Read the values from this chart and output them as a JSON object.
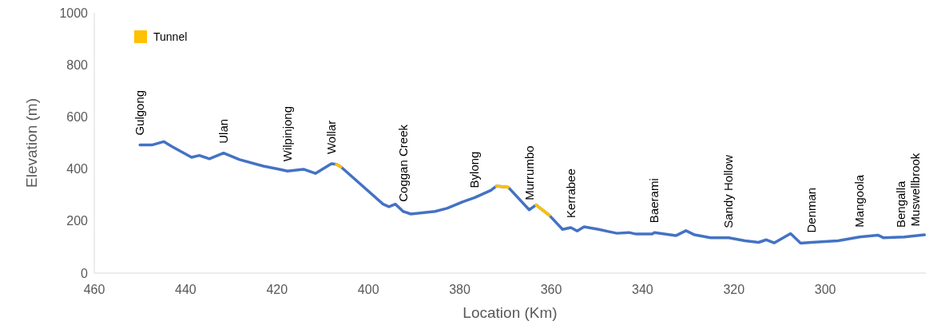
{
  "chart_data": {
    "type": "line",
    "xlabel": "Location (Km)",
    "ylabel": "Elevation (m)",
    "xlim": [
      460,
      278
    ],
    "xticks": [
      460,
      440,
      420,
      400,
      380,
      360,
      340,
      320,
      300
    ],
    "ylim": [
      0,
      1000
    ],
    "yticks": [
      0,
      200,
      400,
      600,
      800,
      1000
    ],
    "grid": false,
    "legend": "top left",
    "marker": "none",
    "line_style": "solid",
    "series": [
      {
        "color": "#4472c4",
        "x": [
          450,
          447.4,
          444.8,
          443,
          438.7,
          437,
          434.8,
          431.7,
          428.2,
          423,
          419.5,
          417.7,
          414.2,
          411.6,
          408.1,
          407,
          406,
          396.8,
          395.5,
          394.1,
          392.4,
          390.7,
          385.4,
          382.8,
          379.3,
          376.7,
          373.2,
          372,
          369.4,
          364.8,
          363.3,
          360.4,
          357.5,
          355.7,
          354.3,
          352.8,
          349.6,
          347.3,
          345.6,
          343,
          341.4,
          337.9,
          337.4,
          332.7,
          330.5,
          328.6,
          325.1,
          321.1,
          317.6,
          314.6,
          312.9,
          311.2,
          307.6,
          305.4,
          303,
          297.2,
          292.5,
          288.5,
          287.3,
          282.7,
          278.3
        ],
        "values": [
          492,
          492,
          505,
          486,
          445,
          452,
          439,
          461,
          436,
          411,
          399,
          392,
          399,
          383,
          420,
          418,
          408,
          265,
          255,
          265,
          237,
          227,
          237,
          249,
          274,
          290,
          318,
          334,
          330,
          243,
          262,
          222,
          168,
          175,
          162,
          178,
          168,
          159,
          153,
          156,
          150,
          150,
          156,
          144,
          163,
          147,
          136,
          136,
          124,
          118,
          128,
          116,
          152,
          115,
          118,
          124,
          139,
          146,
          136,
          139,
          147
        ]
      },
      {
        "name": "Tunnel",
        "color": "#ffc000",
        "x": [
          407,
          406,
          405.9,
          372,
          369.4,
          369.3,
          363.3,
          360.4
        ],
        "values": [
          418,
          408,
          null,
          334,
          330,
          null,
          262,
          222
        ]
      }
    ],
    "annotations": [
      {
        "text": "Gulgong",
        "x": 450,
        "y": 492
      },
      {
        "text": "Ulan",
        "x": 431.7,
        "y": 461
      },
      {
        "text": "Wilpinjong",
        "x": 417.7,
        "y": 392
      },
      {
        "text": "Wollar",
        "x": 408.1,
        "y": 420
      },
      {
        "text": "Coggan Creek",
        "x": 392.4,
        "y": 237
      },
      {
        "text": "Bylong",
        "x": 376.7,
        "y": 290
      },
      {
        "text": "Murrumbo",
        "x": 364.8,
        "y": 243
      },
      {
        "text": "Kerrabee",
        "x": 355.7,
        "y": 175
      },
      {
        "text": "Baerami",
        "x": 337.4,
        "y": 156
      },
      {
        "text": "Sandy Hollow",
        "x": 321.1,
        "y": 136
      },
      {
        "text": "Denman",
        "x": 303,
        "y": 118
      },
      {
        "text": "Mangoola",
        "x": 292.5,
        "y": 139
      },
      {
        "text": "Bengalla",
        "x": 283.5,
        "y": 138
      },
      {
        "text": "Muswellbrook",
        "x": 280.3,
        "y": 143
      }
    ]
  }
}
